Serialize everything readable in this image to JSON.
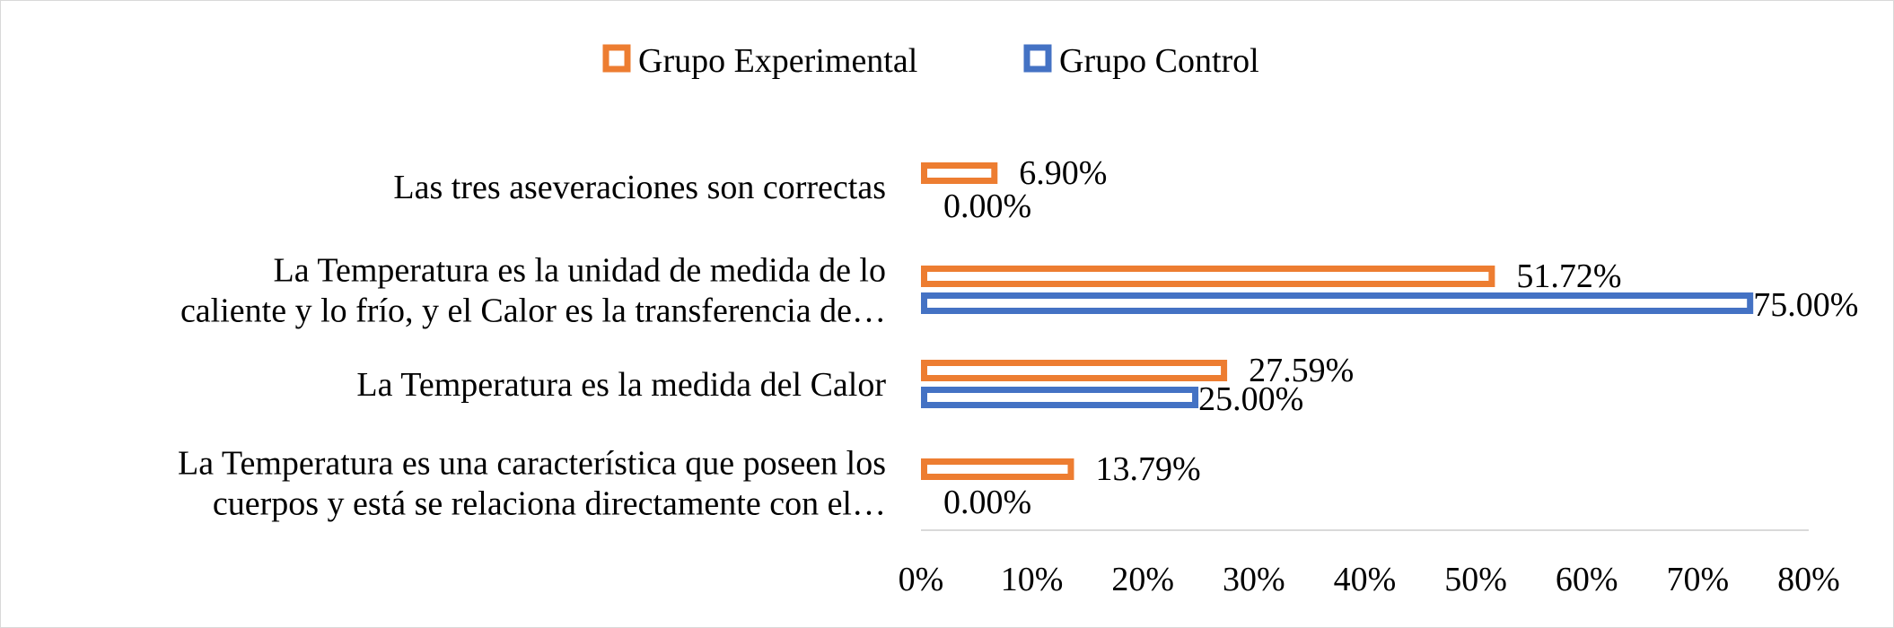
{
  "chart_data": {
    "type": "bar",
    "orientation": "horizontal",
    "title": "",
    "categories": [
      [
        "Las tres aseveraciones son correctas"
      ],
      [
        "La Temperatura es la unidad de medida de lo",
        "caliente y lo frío, y el Calor es la transferencia de…"
      ],
      [
        "La Temperatura es la medida del Calor"
      ],
      [
        "La Temperatura es una característica que poseen los",
        "cuerpos y está se relaciona directamente con el…"
      ]
    ],
    "series": [
      {
        "name": "Grupo Experimental",
        "color": "#ED7D31",
        "values": [
          6.9,
          51.72,
          27.59,
          13.79
        ],
        "labels": [
          "6.90%",
          "51.72%",
          "27.59%",
          "13.79%"
        ]
      },
      {
        "name": "Grupo Control",
        "color": "#4472C4",
        "values": [
          0.0,
          75.0,
          25.0,
          0.0
        ],
        "labels": [
          "0.00%",
          "75.00%",
          "25.00%",
          "0.00%"
        ]
      }
    ],
    "xlim": [
      0,
      80
    ],
    "xticks": [
      "0%",
      "10%",
      "20%",
      "30%",
      "40%",
      "50%",
      "60%",
      "70%",
      "80%"
    ],
    "xlabel": "",
    "ylabel": "",
    "grid": false,
    "legend_position": "top"
  }
}
